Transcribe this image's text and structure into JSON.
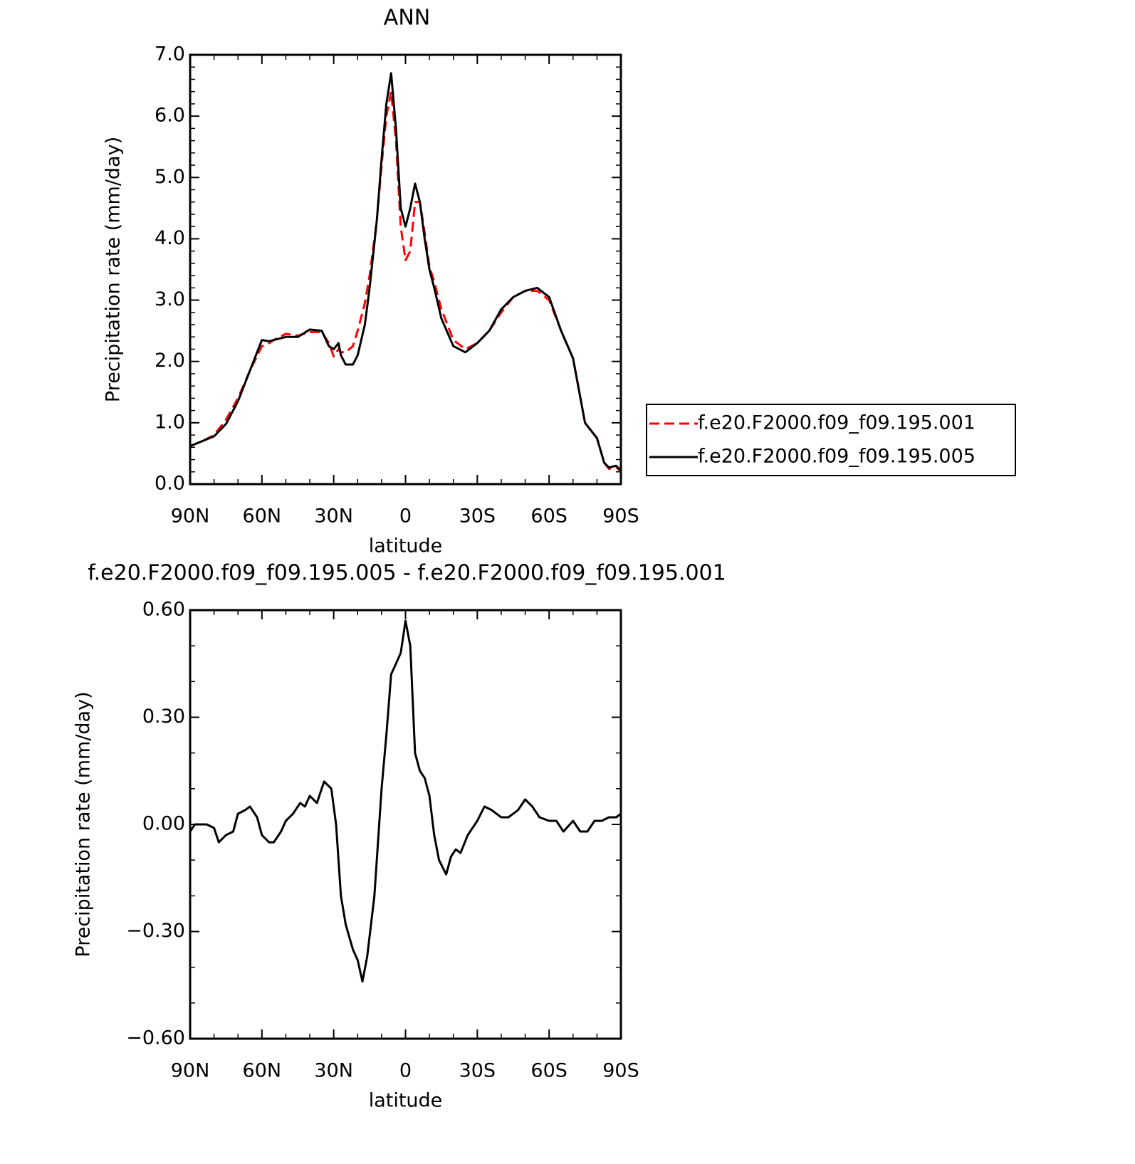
{
  "chart_data": [
    {
      "type": "line",
      "title": "ANN",
      "xlabel": "latitude",
      "ylabel": "Precipitation rate (mm/day)",
      "x": [
        90,
        85,
        80,
        75,
        70,
        65,
        60,
        57,
        55,
        50,
        45,
        40,
        35,
        32,
        30,
        28,
        27,
        25,
        22,
        20,
        17,
        15,
        12,
        10,
        8,
        6,
        4,
        2,
        0,
        -2,
        -4,
        -6,
        -8,
        -10,
        -12,
        -15,
        -20,
        -25,
        -30,
        -35,
        -40,
        -45,
        -50,
        -55,
        -60,
        -65,
        -70,
        -75,
        -80,
        -83,
        -85,
        -88,
        -90
      ],
      "series": [
        {
          "name": "f.e20.F2000.f09_f09.195.001",
          "color": "#ff0000",
          "dash": "dashed",
          "values": [
            0.62,
            0.7,
            0.8,
            1.05,
            1.4,
            1.85,
            2.25,
            2.3,
            2.35,
            2.45,
            2.42,
            2.48,
            2.48,
            2.3,
            2.08,
            2.2,
            2.15,
            2.15,
            2.25,
            2.5,
            2.95,
            3.4,
            4.3,
            5.2,
            6.0,
            6.4,
            5.6,
            4.2,
            3.65,
            3.8,
            4.6,
            4.6,
            4.1,
            3.55,
            3.3,
            2.85,
            2.35,
            2.2,
            2.3,
            2.5,
            2.8,
            3.05,
            3.15,
            3.15,
            3.0,
            2.5,
            2.05,
            1.0,
            0.75,
            0.35,
            0.25,
            0.28,
            0.2
          ]
        },
        {
          "name": "f.e20.F2000.f09_f09.195.005",
          "color": "#000000",
          "dash": "solid",
          "values": [
            0.62,
            0.7,
            0.78,
            0.98,
            1.35,
            1.85,
            2.35,
            2.33,
            2.35,
            2.4,
            2.4,
            2.52,
            2.5,
            2.25,
            2.2,
            2.3,
            2.1,
            1.95,
            1.95,
            2.1,
            2.6,
            3.2,
            4.3,
            5.3,
            6.2,
            6.7,
            5.8,
            4.5,
            4.2,
            4.5,
            4.9,
            4.6,
            4.0,
            3.5,
            3.2,
            2.7,
            2.25,
            2.15,
            2.3,
            2.5,
            2.85,
            3.05,
            3.15,
            3.2,
            3.05,
            2.5,
            2.05,
            1.0,
            0.75,
            0.35,
            0.27,
            0.3,
            0.22
          ]
        }
      ],
      "xlim": [
        90,
        -90
      ],
      "xticks": [
        {
          "value": 90,
          "label": "90N"
        },
        {
          "value": 60,
          "label": "60N"
        },
        {
          "value": 30,
          "label": "30N"
        },
        0,
        {
          "value": -30,
          "label": "30S"
        },
        {
          "value": -60,
          "label": "60S"
        },
        {
          "value": -90,
          "label": "90S"
        }
      ],
      "ylim": [
        0,
        7
      ],
      "yticks": [
        {
          "value": 0,
          "label": "0.0"
        },
        {
          "value": 1,
          "label": "1.0"
        },
        {
          "value": 2,
          "label": "2.0"
        },
        {
          "value": 3,
          "label": "3.0"
        },
        {
          "value": 4,
          "label": "4.0"
        },
        {
          "value": 5,
          "label": "5.0"
        },
        {
          "value": 6,
          "label": "6.0"
        },
        {
          "value": 7,
          "label": "7.0"
        }
      ],
      "legend": "right"
    },
    {
      "type": "line",
      "title": "f.e20.F2000.f09_f09.195.005 - f.e20.F2000.f09_f09.195.001",
      "xlabel": "latitude",
      "ylabel": "Precipitation rate (mm/day)",
      "x": [
        90,
        88,
        85,
        83,
        80,
        78,
        75,
        72,
        70,
        67,
        65,
        62,
        60,
        57,
        55,
        52,
        50,
        47,
        44,
        42,
        40,
        37,
        34,
        31,
        29,
        27,
        25,
        22,
        20,
        18,
        16,
        13,
        10,
        8,
        6,
        4,
        2,
        0,
        -2,
        -4,
        -6,
        -8,
        -10,
        -12,
        -14,
        -17,
        -19,
        -21,
        -23,
        -26,
        -30,
        -33,
        -36,
        -40,
        -43,
        -47,
        -50,
        -53,
        -56,
        -60,
        -63,
        -66,
        -70,
        -73,
        -76,
        -79,
        -82,
        -85,
        -88,
        -90
      ],
      "values": [
        -0.02,
        0.0,
        0.0,
        0.0,
        -0.01,
        -0.05,
        -0.03,
        -0.02,
        0.03,
        0.04,
        0.05,
        0.02,
        -0.03,
        -0.05,
        -0.05,
        -0.02,
        0.01,
        0.03,
        0.06,
        0.05,
        0.08,
        0.06,
        0.12,
        0.1,
        0.0,
        -0.2,
        -0.28,
        -0.35,
        -0.38,
        -0.44,
        -0.37,
        -0.2,
        0.1,
        0.25,
        0.42,
        0.45,
        0.48,
        0.57,
        0.5,
        0.2,
        0.15,
        0.13,
        0.08,
        -0.03,
        -0.1,
        -0.14,
        -0.09,
        -0.07,
        -0.08,
        -0.03,
        0.01,
        0.05,
        0.04,
        0.02,
        0.02,
        0.04,
        0.07,
        0.05,
        0.02,
        0.01,
        0.01,
        -0.02,
        0.01,
        -0.02,
        -0.02,
        0.01,
        0.01,
        0.02,
        0.02,
        0.03
      ],
      "color": "#000000",
      "xlim": [
        90,
        -90
      ],
      "xticks": [
        {
          "value": 90,
          "label": "90N"
        },
        {
          "value": 60,
          "label": "60N"
        },
        {
          "value": 30,
          "label": "30N"
        },
        0,
        {
          "value": -30,
          "label": "30S"
        },
        {
          "value": -60,
          "label": "60S"
        },
        {
          "value": -90,
          "label": "90S"
        }
      ],
      "ylim": [
        -0.6,
        0.6
      ],
      "yticks": [
        {
          "value": -0.6,
          "label": "−0.60"
        },
        {
          "value": -0.3,
          "label": "−0.30"
        },
        {
          "value": 0,
          "label": "0.00"
        },
        {
          "value": 0.3,
          "label": "0.30"
        },
        {
          "value": 0.6,
          "label": "0.60"
        }
      ]
    }
  ]
}
